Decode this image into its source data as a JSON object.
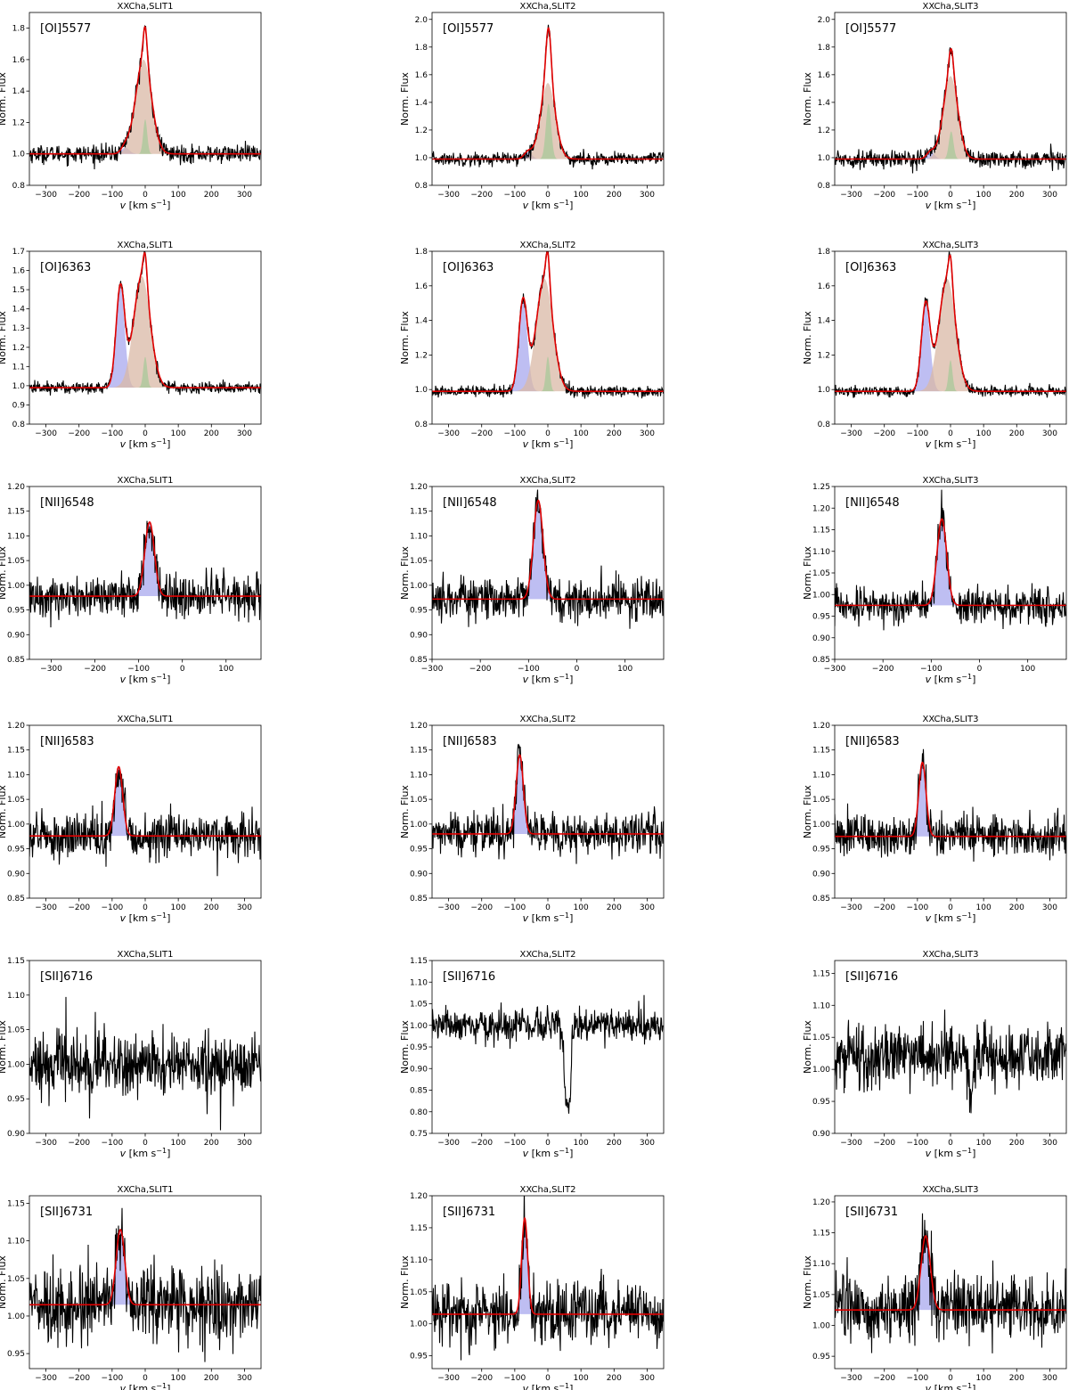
{
  "figure": {
    "ylabel": "Norm. Flux",
    "xlabel_prefix": "v",
    "xlabel_units": "[km s",
    "xlabel_exp": "−1",
    "xlabel_close": "]"
  },
  "colors": {
    "spectrum": "#000000",
    "fit": "#e00000",
    "lvc_component": "#a8a8ee",
    "hvc_component": "#d9b8a6",
    "nc_component": "#a8c89a",
    "frame": "#000000"
  },
  "chart_data": [
    {
      "type": "line",
      "title": "XXCha,SLIT1",
      "line_label": "[OI]5577",
      "xlim": [
        -350,
        350
      ],
      "ylim": [
        0.8,
        1.9
      ],
      "xticks": [
        "-300",
        "-200",
        "-100",
        "0",
        "100",
        "200",
        "300"
      ],
      "yticks": [
        "0.8",
        "1.0",
        "1.2",
        "1.4",
        "1.6",
        "1.8"
      ],
      "ylabel": "Norm. Flux",
      "baseline": 1.0,
      "noise": 0.035,
      "components": [
        {
          "name": "blue",
          "center": -60,
          "sigma": 12,
          "amp": 0.04
        },
        {
          "name": "broad",
          "center": -5,
          "sigma": 24,
          "amp": 0.6
        },
        {
          "name": "narrow",
          "center": 0,
          "sigma": 6,
          "amp": 0.22
        }
      ],
      "peak": 1.73
    },
    {
      "type": "line",
      "title": "XXCha,SLIT2",
      "line_label": "[OI]5577",
      "xlim": [
        -350,
        350
      ],
      "ylim": [
        0.8,
        2.05
      ],
      "xticks": [
        "-300",
        "-200",
        "-100",
        "0",
        "100",
        "200",
        "300"
      ],
      "yticks": [
        "0.8",
        "1.0",
        "1.2",
        "1.4",
        "1.6",
        "1.8",
        "2.0"
      ],
      "ylabel": "Norm. Flux",
      "baseline": 0.99,
      "noise": 0.03,
      "components": [
        {
          "name": "blue",
          "center": -60,
          "sigma": 12,
          "amp": 0.05
        },
        {
          "name": "broad",
          "center": 0,
          "sigma": 22,
          "amp": 0.55
        },
        {
          "name": "narrow",
          "center": 2,
          "sigma": 8,
          "amp": 0.4
        }
      ],
      "peak": 1.93
    },
    {
      "type": "line",
      "title": "XXCha,SLIT3",
      "line_label": "[OI]5577",
      "xlim": [
        -350,
        350
      ],
      "ylim": [
        0.8,
        2.05
      ],
      "xticks": [
        "-300",
        "-200",
        "-100",
        "0",
        "100",
        "200",
        "300"
      ],
      "yticks": [
        "0.8",
        "1.0",
        "1.2",
        "1.4",
        "1.6",
        "1.8",
        "2.0"
      ],
      "ylabel": "Norm. Flux",
      "baseline": 0.99,
      "noise": 0.04,
      "components": [
        {
          "name": "blue",
          "center": -60,
          "sigma": 12,
          "amp": 0.05
        },
        {
          "name": "broad",
          "center": 0,
          "sigma": 22,
          "amp": 0.6
        },
        {
          "name": "narrow",
          "center": 2,
          "sigma": 7,
          "amp": 0.2
        }
      ],
      "peak": 1.88
    },
    {
      "type": "line",
      "title": "XXCha,SLIT1",
      "line_label": "[OI]6363",
      "xlim": [
        -350,
        350
      ],
      "ylim": [
        0.8,
        1.7
      ],
      "xticks": [
        "-300",
        "-200",
        "-100",
        "0",
        "100",
        "200",
        "300"
      ],
      "yticks": [
        "0.8",
        "0.9",
        "1.0",
        "1.1",
        "1.2",
        "1.3",
        "1.4",
        "1.5",
        "1.6",
        "1.7"
      ],
      "ylabel": "Norm. Flux",
      "baseline": 0.99,
      "noise": 0.02,
      "components": [
        {
          "name": "blue",
          "center": -75,
          "sigma": 13,
          "amp": 0.52
        },
        {
          "name": "broad",
          "center": -10,
          "sigma": 25,
          "amp": 0.58
        },
        {
          "name": "narrow",
          "center": 0,
          "sigma": 6,
          "amp": 0.16
        }
      ],
      "peak": 1.62
    },
    {
      "type": "line",
      "title": "XXCha,SLIT2",
      "line_label": "[OI]6363",
      "xlim": [
        -350,
        350
      ],
      "ylim": [
        0.8,
        1.8
      ],
      "xticks": [
        "-300",
        "-200",
        "-100",
        "0",
        "100",
        "200",
        "300"
      ],
      "yticks": [
        "0.8",
        "1.0",
        "1.2",
        "1.4",
        "1.6",
        "1.8"
      ],
      "ylabel": "Norm. Flux",
      "baseline": 0.99,
      "noise": 0.02,
      "components": [
        {
          "name": "blue",
          "center": -75,
          "sigma": 13,
          "amp": 0.52
        },
        {
          "name": "broad",
          "center": -10,
          "sigma": 25,
          "amp": 0.65
        },
        {
          "name": "narrow",
          "center": 0,
          "sigma": 6,
          "amp": 0.2
        }
      ],
      "peak": 1.69
    },
    {
      "type": "line",
      "title": "XXCha,SLIT3",
      "line_label": "[OI]6363",
      "xlim": [
        -350,
        350
      ],
      "ylim": [
        0.8,
        1.8
      ],
      "xticks": [
        "-300",
        "-200",
        "-100",
        "0",
        "100",
        "200",
        "300"
      ],
      "yticks": [
        "0.8",
        "1.0",
        "1.2",
        "1.4",
        "1.6",
        "1.8"
      ],
      "ylabel": "Norm. Flux",
      "baseline": 0.99,
      "noise": 0.02,
      "components": [
        {
          "name": "blue",
          "center": -75,
          "sigma": 13,
          "amp": 0.5
        },
        {
          "name": "broad",
          "center": -10,
          "sigma": 25,
          "amp": 0.65
        },
        {
          "name": "narrow",
          "center": 0,
          "sigma": 6,
          "amp": 0.18
        }
      ],
      "peak": 1.68
    },
    {
      "type": "line",
      "title": "XXCha,SLIT1",
      "line_label": "[NII]6548",
      "xlim": [
        -350,
        180
      ],
      "ylim": [
        0.85,
        1.2
      ],
      "xticks": [
        "-300",
        "-200",
        "-100",
        "0",
        "100"
      ],
      "yticks": [
        "0.85",
        "0.90",
        "0.95",
        "1.00",
        "1.05",
        "1.10",
        "1.15",
        "1.20"
      ],
      "ylabel": "Norm. Flux",
      "baseline": 0.978,
      "noise": 0.028,
      "components": [
        {
          "name": "blue",
          "center": -75,
          "sigma": 11,
          "amp": 0.15
        }
      ],
      "peak": 1.16
    },
    {
      "type": "line",
      "title": "XXCha,SLIT2",
      "line_label": "[NII]6548",
      "xlim": [
        -300,
        180
      ],
      "ylim": [
        0.85,
        1.2
      ],
      "xticks": [
        "-300",
        "-200",
        "-100",
        "0",
        "100"
      ],
      "yticks": [
        "0.85",
        "0.90",
        "0.95",
        "1.00",
        "1.05",
        "1.10",
        "1.15",
        "1.20"
      ],
      "ylabel": "Norm. Flux",
      "baseline": 0.972,
      "noise": 0.028,
      "components": [
        {
          "name": "blue",
          "center": -80,
          "sigma": 10,
          "amp": 0.2
        }
      ],
      "peak": 1.19
    },
    {
      "type": "line",
      "title": "XXCha,SLIT3",
      "line_label": "[NII]6548",
      "xlim": [
        -300,
        180
      ],
      "ylim": [
        0.85,
        1.25
      ],
      "xticks": [
        "-300",
        "-200",
        "-100",
        "0",
        "100"
      ],
      "yticks": [
        "0.85",
        "0.90",
        "0.95",
        "1.00",
        "1.05",
        "1.10",
        "1.15",
        "1.20",
        "1.25"
      ],
      "ylabel": "Norm. Flux",
      "baseline": 0.975,
      "noise": 0.025,
      "components": [
        {
          "name": "blue",
          "center": -78,
          "sigma": 10,
          "amp": 0.2
        }
      ],
      "peak": 1.22
    },
    {
      "type": "line",
      "title": "XXCha,SLIT1",
      "line_label": "[NII]6583",
      "xlim": [
        -350,
        350
      ],
      "ylim": [
        0.85,
        1.2
      ],
      "xticks": [
        "-300",
        "-200",
        "-100",
        "0",
        "100",
        "200",
        "300"
      ],
      "yticks": [
        "0.85",
        "0.90",
        "0.95",
        "1.00",
        "1.05",
        "1.10",
        "1.15",
        "1.20"
      ],
      "ylabel": "Norm. Flux",
      "baseline": 0.976,
      "noise": 0.028,
      "components": [
        {
          "name": "blue",
          "center": -80,
          "sigma": 12,
          "amp": 0.14
        }
      ],
      "peak": 1.14
    },
    {
      "type": "line",
      "title": "XXCha,SLIT2",
      "line_label": "[NII]6583",
      "xlim": [
        -350,
        350
      ],
      "ylim": [
        0.85,
        1.2
      ],
      "xticks": [
        "-300",
        "-200",
        "-100",
        "0",
        "100",
        "200",
        "300"
      ],
      "yticks": [
        "0.85",
        "0.90",
        "0.95",
        "1.00",
        "1.05",
        "1.10",
        "1.15",
        "1.20"
      ],
      "ylabel": "Norm. Flux",
      "baseline": 0.98,
      "noise": 0.026,
      "components": [
        {
          "name": "blue",
          "center": -85,
          "sigma": 11,
          "amp": 0.16
        }
      ],
      "peak": 1.16
    },
    {
      "type": "line",
      "title": "XXCha,SLIT3",
      "line_label": "[NII]6583",
      "xlim": [
        -350,
        350
      ],
      "ylim": [
        0.85,
        1.2
      ],
      "xticks": [
        "-300",
        "-200",
        "-100",
        "0",
        "100",
        "200",
        "300"
      ],
      "yticks": [
        "0.85",
        "0.90",
        "0.95",
        "1.00",
        "1.05",
        "1.10",
        "1.15",
        "1.20"
      ],
      "ylabel": "Norm. Flux",
      "baseline": 0.975,
      "noise": 0.028,
      "components": [
        {
          "name": "blue",
          "center": -85,
          "sigma": 11,
          "amp": 0.15
        }
      ],
      "peak": 1.16
    },
    {
      "type": "line",
      "title": "XXCha,SLIT1",
      "line_label": "[SII]6716",
      "xlim": [
        -350,
        350
      ],
      "ylim": [
        0.9,
        1.15
      ],
      "xticks": [
        "-300",
        "-200",
        "-100",
        "0",
        "100",
        "200",
        "300"
      ],
      "yticks": [
        "0.90",
        "0.95",
        "1.00",
        "1.05",
        "1.10",
        "1.15"
      ],
      "ylabel": "Norm. Flux",
      "baseline": 1.0,
      "noise": 0.028,
      "components": []
    },
    {
      "type": "line",
      "title": "XXCha,SLIT2",
      "line_label": "[SII]6716",
      "xlim": [
        -350,
        350
      ],
      "ylim": [
        0.75,
        1.15
      ],
      "xticks": [
        "-300",
        "-200",
        "-100",
        "0",
        "100",
        "200",
        "300"
      ],
      "yticks": [
        "0.75",
        "0.80",
        "0.85",
        "0.90",
        "0.95",
        "1.00",
        "1.05",
        "1.10",
        "1.15"
      ],
      "ylabel": "Norm. Flux",
      "baseline": 1.0,
      "noise": 0.025,
      "components": [],
      "absorption": {
        "center": 60,
        "sigma": 9,
        "depth": 0.2
      },
      "min": 0.78
    },
    {
      "type": "line",
      "title": "XXCha,SLIT3",
      "line_label": "[SII]6716",
      "xlim": [
        -350,
        350
      ],
      "ylim": [
        0.9,
        1.17
      ],
      "xticks": [
        "-300",
        "-200",
        "-100",
        "0",
        "100",
        "200",
        "300"
      ],
      "yticks": [
        "0.90",
        "0.95",
        "1.00",
        "1.05",
        "1.10",
        "1.15"
      ],
      "ylabel": "Norm. Flux",
      "baseline": 1.02,
      "noise": 0.03,
      "components": [],
      "absorption": {
        "center": 60,
        "sigma": 8,
        "depth": 0.06
      },
      "min": 0.93
    },
    {
      "type": "line",
      "title": "XXCha,SLIT1",
      "line_label": "[SII]6731",
      "xlim": [
        -350,
        350
      ],
      "ylim": [
        0.93,
        1.16
      ],
      "xticks": [
        "-300",
        "-200",
        "-100",
        "0",
        "100",
        "200",
        "300"
      ],
      "yticks": [
        "0.95",
        "1.00",
        "1.05",
        "1.10",
        "1.15"
      ],
      "ylabel": "Norm. Flux",
      "baseline": 1.015,
      "noise": 0.03,
      "components": [
        {
          "name": "blue",
          "center": -75,
          "sigma": 13,
          "amp": 0.1
        }
      ],
      "peak": 1.14
    },
    {
      "type": "line",
      "title": "XXCha,SLIT2",
      "line_label": "[SII]6731",
      "xlim": [
        -350,
        350
      ],
      "ylim": [
        0.93,
        1.2
      ],
      "xticks": [
        "-300",
        "-200",
        "-100",
        "0",
        "100",
        "200",
        "300"
      ],
      "yticks": [
        "0.95",
        "1.00",
        "1.05",
        "1.10",
        "1.15",
        "1.20"
      ],
      "ylabel": "Norm. Flux",
      "baseline": 1.015,
      "noise": 0.03,
      "components": [
        {
          "name": "blue",
          "center": -70,
          "sigma": 9,
          "amp": 0.15
        }
      ],
      "peak": 1.18
    },
    {
      "type": "line",
      "title": "XXCha,SLIT3",
      "line_label": "[SII]6731",
      "xlim": [
        -350,
        350
      ],
      "ylim": [
        0.93,
        1.21
      ],
      "xticks": [
        "-300",
        "-200",
        "-100",
        "0",
        "100",
        "200",
        "300"
      ],
      "yticks": [
        "0.95",
        "1.00",
        "1.05",
        "1.10",
        "1.15",
        "1.20"
      ],
      "ylabel": "Norm. Flux",
      "baseline": 1.025,
      "noise": 0.035,
      "components": [
        {
          "name": "blue",
          "center": -75,
          "sigma": 14,
          "amp": 0.12
        }
      ],
      "peak": 1.2
    }
  ]
}
